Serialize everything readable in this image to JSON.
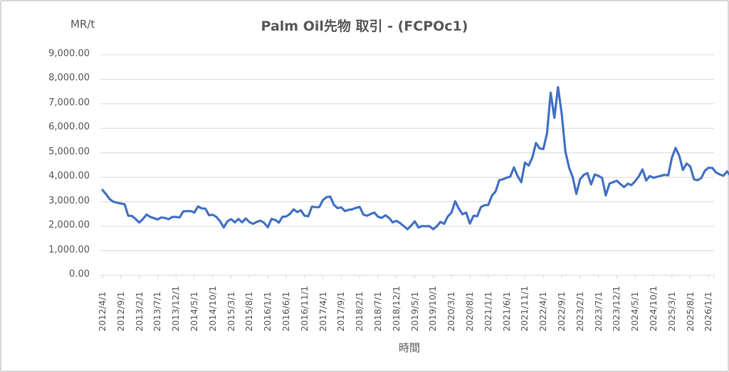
{
  "chart_data": {
    "type": "line",
    "title": "Palm Oil先物 取引 - (FCPOc1)",
    "ylabel": "MR/t",
    "xlabel": "時間",
    "ylim": [
      0,
      9000
    ],
    "y_ticks": [
      "0.00",
      "1,000.00",
      "2,000.00",
      "3,000.00",
      "4,000.00",
      "5,000.00",
      "6,000.00",
      "7,000.00",
      "8,000.00",
      "9,000.00"
    ],
    "x_tick_labels": [
      "2012/4/1",
      "2012/9/1",
      "2013/2/1",
      "2013/7/1",
      "2013/12/1",
      "2014/5/1",
      "2014/10/1",
      "2015/3/1",
      "2015/8/1",
      "2016/1/1",
      "2016/6/1",
      "2016/11/1",
      "2017/4/1",
      "2017/9/1",
      "2018/2/1",
      "2018/7/1",
      "2018/12/1",
      "2019/5/1",
      "2019/10/1",
      "2020/3/1",
      "2020/8/1",
      "2021/1/1",
      "2021/6/1",
      "2021/11/1",
      "2022/4/1",
      "2022/9/1",
      "2023/2/1",
      "2023/7/1",
      "2023/12/1",
      "2024/5/1",
      "2024/10/1",
      "2025/3/1",
      "2025/8/1",
      "2026/1/1"
    ],
    "grid": "horizontal",
    "legend": "none",
    "line_color": "#4472C4",
    "x_start": "2012/4/1",
    "x_frequency": "monthly",
    "series": [
      {
        "name": "FCPOc1",
        "values": [
          3480,
          3300,
          3100,
          3000,
          2960,
          2930,
          2900,
          2430,
          2420,
          2300,
          2150,
          2300,
          2480,
          2380,
          2330,
          2280,
          2360,
          2340,
          2290,
          2380,
          2380,
          2360,
          2610,
          2620,
          2620,
          2560,
          2810,
          2730,
          2720,
          2450,
          2470,
          2380,
          2210,
          1950,
          2200,
          2290,
          2160,
          2300,
          2160,
          2320,
          2170,
          2100,
          2180,
          2230,
          2140,
          1960,
          2300,
          2260,
          2150,
          2390,
          2400,
          2500,
          2690,
          2580,
          2650,
          2430,
          2410,
          2800,
          2780,
          2780,
          3070,
          3190,
          3210,
          2870,
          2740,
          2770,
          2620,
          2670,
          2690,
          2750,
          2790,
          2480,
          2430,
          2500,
          2560,
          2390,
          2340,
          2450,
          2340,
          2160,
          2220,
          2130,
          2010,
          1880,
          2020,
          2200,
          1950,
          2010,
          2000,
          2010,
          1880,
          2000,
          2180,
          2100,
          2400,
          2560,
          3020,
          2720,
          2490,
          2560,
          2110,
          2430,
          2410,
          2780,
          2860,
          2870,
          3250,
          3420,
          3880,
          3920,
          3980,
          4030,
          4400,
          4050,
          3800,
          4600,
          4480,
          4800,
          5400,
          5180,
          5150,
          5800,
          7450,
          6430,
          7680,
          6600,
          5050,
          4400,
          4000,
          3320,
          3920,
          4100,
          4170,
          3710,
          4110,
          4060,
          3970,
          3260,
          3740,
          3800,
          3860,
          3720,
          3600,
          3740,
          3680,
          3840,
          4040,
          4320,
          3870,
          4050,
          3980,
          4020,
          4060,
          4100,
          4080,
          4800,
          5200,
          4880,
          4300,
          4560,
          4440,
          3920,
          3880,
          3970,
          4270,
          4390,
          4380,
          4200,
          4120,
          4060,
          4240,
          4060,
          4650
        ]
      }
    ]
  }
}
